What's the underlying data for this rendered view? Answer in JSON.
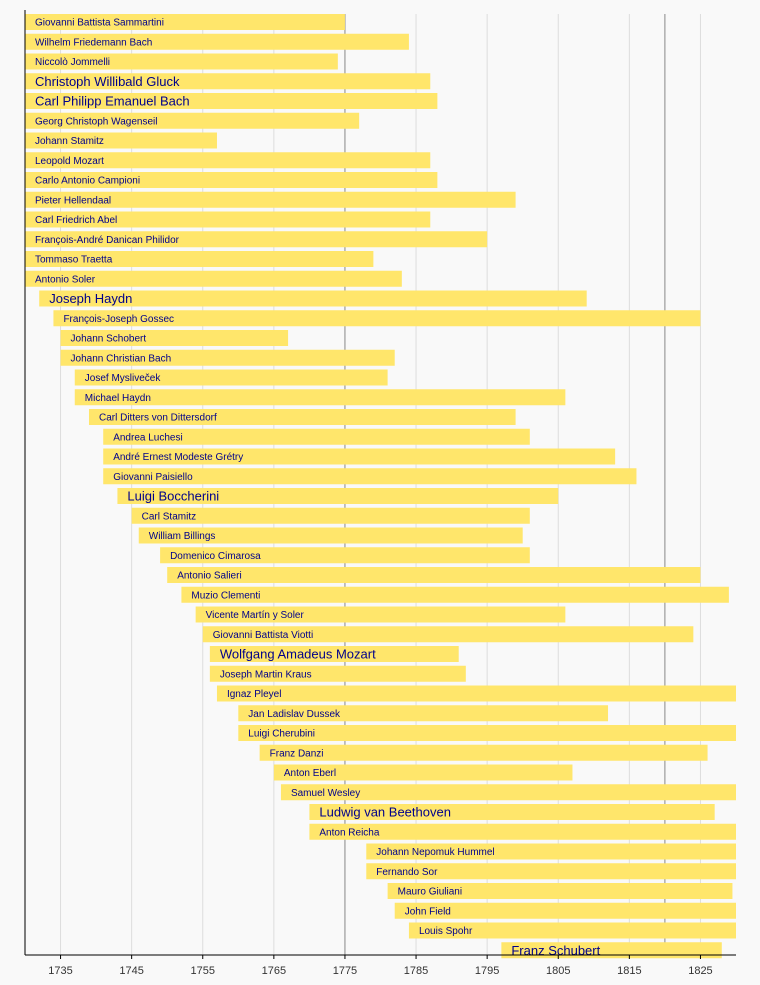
{
  "colors": {
    "bar": "#ffe66b",
    "label": "#00008b",
    "grid_minor": "#dddddd",
    "grid_major": "#888888",
    "axis": "#000000",
    "background": "#f9f9f9"
  },
  "chart_data": {
    "type": "bar",
    "orientation": "horizontal",
    "grid": true,
    "xlim": [
      1730,
      1830
    ],
    "x_ticks": [
      1735,
      1745,
      1755,
      1765,
      1775,
      1785,
      1795,
      1805,
      1815,
      1825
    ],
    "major_lines": [
      1775,
      1820
    ],
    "minor_lines": [
      1735,
      1745,
      1755,
      1765,
      1785,
      1795,
      1805,
      1815,
      1825
    ],
    "open_ended_after": 1830,
    "series": [
      {
        "label": "Giovanni Battista Sammartini",
        "start": 1730,
        "end": 1775
      },
      {
        "label": "Wilhelm Friedemann Bach",
        "start": 1730,
        "end": 1784
      },
      {
        "label": "Niccolò Jommelli",
        "start": 1730,
        "end": 1774
      },
      {
        "label": "Christoph Willibald Gluck",
        "start": 1730,
        "end": 1787,
        "emphasis": true
      },
      {
        "label": "Carl Philipp Emanuel Bach",
        "start": 1730,
        "end": 1788,
        "emphasis": true
      },
      {
        "label": "Georg Christoph Wagenseil",
        "start": 1730,
        "end": 1777
      },
      {
        "label": "Johann Stamitz",
        "start": 1730,
        "end": 1757
      },
      {
        "label": "Leopold Mozart",
        "start": 1730,
        "end": 1787
      },
      {
        "label": "Carlo Antonio Campioni",
        "start": 1730,
        "end": 1788
      },
      {
        "label": "Pieter Hellendaal",
        "start": 1730,
        "end": 1799
      },
      {
        "label": "Carl Friedrich Abel",
        "start": 1730,
        "end": 1787
      },
      {
        "label": "François-André Danican Philidor",
        "start": 1730,
        "end": 1795
      },
      {
        "label": "Tommaso Traetta",
        "start": 1730,
        "end": 1779
      },
      {
        "label": "Antonio Soler",
        "start": 1730,
        "end": 1783
      },
      {
        "label": "Joseph Haydn",
        "start": 1732,
        "end": 1809,
        "emphasis": true
      },
      {
        "label": "François-Joseph Gossec",
        "start": 1734,
        "end": 1825
      },
      {
        "label": "Johann Schobert",
        "start": 1735,
        "end": 1767
      },
      {
        "label": "Johann Christian Bach",
        "start": 1735,
        "end": 1782
      },
      {
        "label": "Josef Mysliveček",
        "start": 1737,
        "end": 1781
      },
      {
        "label": "Michael Haydn",
        "start": 1737,
        "end": 1806
      },
      {
        "label": "Carl Ditters von Dittersdorf",
        "start": 1739,
        "end": 1799
      },
      {
        "label": "Andrea Luchesi",
        "start": 1741,
        "end": 1801
      },
      {
        "label": "André Ernest Modeste Grétry",
        "start": 1741,
        "end": 1813
      },
      {
        "label": "Giovanni Paisiello",
        "start": 1741,
        "end": 1816
      },
      {
        "label": "Luigi Boccherini",
        "start": 1743,
        "end": 1805,
        "emphasis": true
      },
      {
        "label": "Carl Stamitz",
        "start": 1745,
        "end": 1801
      },
      {
        "label": "William Billings",
        "start": 1746,
        "end": 1800
      },
      {
        "label": "Domenico Cimarosa",
        "start": 1749,
        "end": 1801
      },
      {
        "label": "Antonio Salieri",
        "start": 1750,
        "end": 1825
      },
      {
        "label": "Muzio Clementi",
        "start": 1752,
        "end": 1829
      },
      {
        "label": "Vicente Martín y Soler",
        "start": 1754,
        "end": 1806
      },
      {
        "label": "Giovanni Battista Viotti",
        "start": 1755,
        "end": 1824
      },
      {
        "label": "Wolfgang Amadeus Mozart",
        "start": 1756,
        "end": 1791,
        "emphasis": true
      },
      {
        "label": "Joseph Martin Kraus",
        "start": 1756,
        "end": 1792
      },
      {
        "label": "Ignaz Pleyel",
        "start": 1757,
        "end": 1831
      },
      {
        "label": "Jan Ladislav Dussek",
        "start": 1760,
        "end": 1812
      },
      {
        "label": "Luigi Cherubini",
        "start": 1760,
        "end": 1842
      },
      {
        "label": "Franz Danzi",
        "start": 1763,
        "end": 1826
      },
      {
        "label": "Anton Eberl",
        "start": 1765,
        "end": 1807
      },
      {
        "label": "Samuel Wesley",
        "start": 1766,
        "end": 1837
      },
      {
        "label": "Ludwig van Beethoven",
        "start": 1770,
        "end": 1827,
        "emphasis": true
      },
      {
        "label": "Anton Reicha",
        "start": 1770,
        "end": 1836
      },
      {
        "label": "Johann Nepomuk Hummel",
        "start": 1778,
        "end": 1837
      },
      {
        "label": "Fernando Sor",
        "start": 1778,
        "end": 1839
      },
      {
        "label": "Mauro Giuliani",
        "start": 1781,
        "end": 1829.5
      },
      {
        "label": "John Field",
        "start": 1782,
        "end": 1837
      },
      {
        "label": "Louis Spohr",
        "start": 1784,
        "end": 1859
      },
      {
        "label": "Franz Schubert",
        "start": 1797,
        "end": 1828,
        "emphasis": true
      }
    ]
  }
}
